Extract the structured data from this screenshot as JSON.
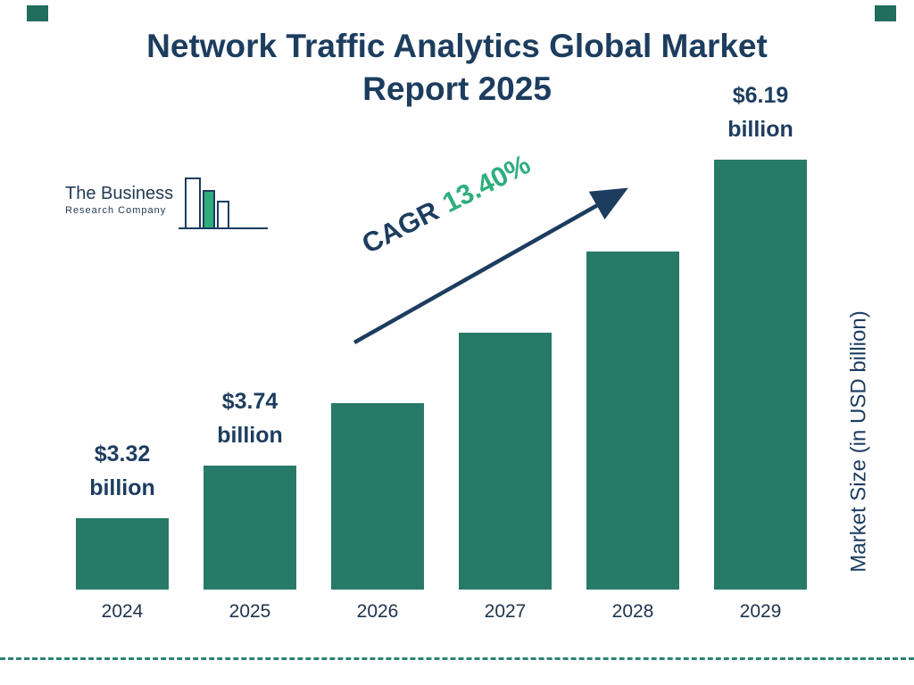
{
  "title": {
    "line1": "Network Traffic Analytics Global Market",
    "line2": "Report 2025"
  },
  "logo": {
    "line1": "The Business",
    "line2": "Research Company"
  },
  "cagr": {
    "prefix": "CAGR",
    "value": "13.40%"
  },
  "colors": {
    "navy": "#1d3d5f",
    "green_accent": "#2fae7d",
    "bar_teal": "#287a68"
  },
  "chart_data": {
    "type": "bar",
    "title": "Network Traffic Analytics Global Market Report 2025",
    "categories": [
      "2024",
      "2025",
      "2026",
      "2027",
      "2028",
      "2029"
    ],
    "values": [
      3.32,
      3.74,
      4.24,
      4.81,
      5.46,
      6.19
    ],
    "bars": [
      {
        "year": "2024",
        "value": 3.32,
        "label_value": "$3.32",
        "label_unit": "billion"
      },
      {
        "year": "2025",
        "value": 3.74,
        "label_value": "$3.74",
        "label_unit": "billion"
      },
      {
        "year": "2026",
        "value": 4.24
      },
      {
        "year": "2027",
        "value": 4.81
      },
      {
        "year": "2028",
        "value": 5.46
      },
      {
        "year": "2029",
        "value": 6.19,
        "label_value": "$6.19",
        "label_unit": "billion"
      }
    ],
    "xlabel": "",
    "ylabel": "Market Size (in USD billion)",
    "cagr": "13.40%",
    "grid": false,
    "legend": null,
    "bar_color": "#287a68"
  }
}
